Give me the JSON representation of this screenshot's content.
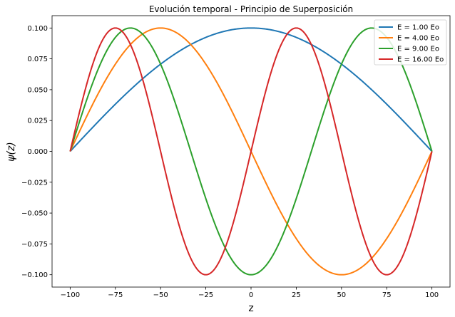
{
  "chart_data": {
    "type": "line",
    "title": "Evolución temporal - Principio de Superposición",
    "xlabel": "z",
    "ylabel": "ψ(z)",
    "xlim": [
      -110,
      110
    ],
    "ylim": [
      -0.11,
      0.11
    ],
    "xticks": [
      "−100",
      "−75",
      "−50",
      "−25",
      "0",
      "25",
      "50",
      "75",
      "100"
    ],
    "yticks": [
      "−0.100",
      "−0.075",
      "−0.050",
      "−0.025",
      "0.000",
      "0.025",
      "0.050",
      "0.075",
      "0.100"
    ],
    "grid": false,
    "legend_position": "top-right",
    "x_range": [
      -100,
      100
    ],
    "amplitude": 0.1,
    "series": [
      {
        "name": "E = 1.00 Eo",
        "n": 1,
        "color": "#1f77b4"
      },
      {
        "name": "E = 4.00 Eo",
        "n": 2,
        "color": "#ff7f0e"
      },
      {
        "name": "E = 9.00 Eo",
        "n": 3,
        "color": "#2ca02c"
      },
      {
        "name": "E = 16.00 Eo",
        "n": 4,
        "color": "#d62728"
      }
    ]
  }
}
